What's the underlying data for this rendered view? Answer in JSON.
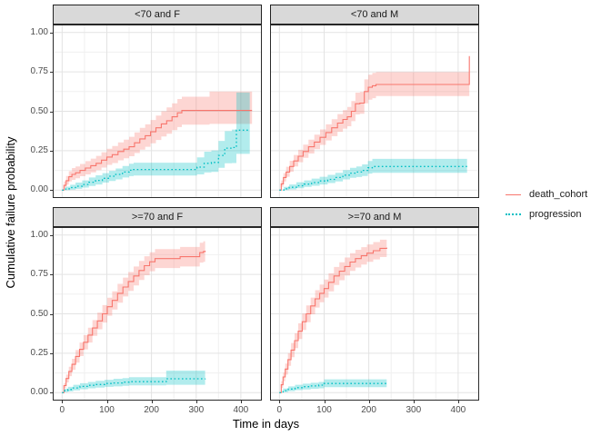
{
  "figure": {
    "background": "#ffffff",
    "panel_background": "#ffffff",
    "panel_border": "#2b2b2b",
    "strip_background": "#d9d9d9",
    "grid_major_color": "#e3e3e3",
    "grid_minor_color": "#f0f0f0",
    "tick_color": "#333333",
    "tick_text_color": "#4d4d4d"
  },
  "chart_data": {
    "type": "line",
    "title": "",
    "xlabel": "Time in days",
    "ylabel": "Cumulative failure probability",
    "legend_position": "right",
    "grid": true,
    "xlim": [
      -21,
      447
    ],
    "ylim": [
      -0.05,
      1.05
    ],
    "x_ticks": [
      0,
      100,
      200,
      300,
      400
    ],
    "x_tick_labels": [
      "0",
      "100",
      "200",
      "300",
      "400"
    ],
    "x_minor_ticks": [
      50,
      150,
      250,
      350
    ],
    "y_ticks": [
      0,
      0.25,
      0.5,
      0.75,
      1.0
    ],
    "y_tick_labels": [
      "0.00",
      "0.25",
      "0.50",
      "0.75",
      "1.00"
    ],
    "y_minor_ticks": [
      0.125,
      0.375,
      0.625,
      0.875
    ],
    "legend": [
      {
        "name": "death_cohort",
        "color": "#F8766D",
        "linestyle": "solid"
      },
      {
        "name": "progression",
        "color": "#00BFC4",
        "linestyle": "dotted"
      }
    ],
    "ribbon_opacity": 0.3,
    "panels": [
      {
        "label": "<70 and F",
        "series": [
          {
            "name": "death_cohort",
            "x": [
              0,
              4,
              9,
              15,
              22,
              30,
              40,
              52,
              64,
              76,
              88,
              100,
              112,
              125,
              138,
              150,
              162,
              174,
              186,
              198,
              210,
              222,
              234,
              246,
              258,
              268,
              330,
              425
            ],
            "y": [
              0,
              0.03,
              0.06,
              0.085,
              0.1,
              0.11,
              0.125,
              0.14,
              0.155,
              0.17,
              0.19,
              0.21,
              0.225,
              0.245,
              0.26,
              0.275,
              0.3,
              0.325,
              0.345,
              0.37,
              0.395,
              0.42,
              0.44,
              0.465,
              0.49,
              0.505,
              0.505,
              0.505
            ],
            "lower": [
              0,
              0.012,
              0.035,
              0.055,
              0.065,
              0.075,
              0.088,
              0.1,
              0.113,
              0.127,
              0.143,
              0.16,
              0.172,
              0.189,
              0.202,
              0.215,
              0.235,
              0.257,
              0.275,
              0.297,
              0.318,
              0.34,
              0.357,
              0.38,
              0.4,
              0.415,
              0.42,
              0.42
            ],
            "upper": [
              0,
              0.055,
              0.09,
              0.12,
              0.14,
              0.15,
              0.166,
              0.184,
              0.2,
              0.217,
              0.24,
              0.263,
              0.28,
              0.303,
              0.32,
              0.338,
              0.366,
              0.395,
              0.417,
              0.445,
              0.473,
              0.5,
              0.524,
              0.55,
              0.578,
              0.592,
              0.625,
              0.625
            ]
          },
          {
            "name": "progression",
            "x": [
              0,
              8,
              18,
              30,
              45,
              60,
              75,
              90,
              105,
              120,
              135,
              150,
              160,
              290,
              302,
              318,
              334,
              350,
              364,
              380,
              390,
              420
            ],
            "y": [
              0,
              0.008,
              0.016,
              0.025,
              0.036,
              0.05,
              0.062,
              0.075,
              0.088,
              0.1,
              0.115,
              0.126,
              0.131,
              0.131,
              0.146,
              0.17,
              0.176,
              0.22,
              0.266,
              0.27,
              0.38,
              0.38
            ],
            "lower": [
              0,
              0,
              0.003,
              0.008,
              0.016,
              0.026,
              0.036,
              0.048,
              0.058,
              0.068,
              0.08,
              0.089,
              0.092,
              0.092,
              0.1,
              0.112,
              0.116,
              0.142,
              0.17,
              0.172,
              0.23,
              0.23
            ],
            "upper": [
              0,
              0.022,
              0.034,
              0.048,
              0.062,
              0.08,
              0.094,
              0.108,
              0.122,
              0.137,
              0.153,
              0.167,
              0.174,
              0.174,
              0.208,
              0.244,
              0.252,
              0.312,
              0.374,
              0.384,
              0.62,
              0.625
            ]
          }
        ]
      },
      {
        "label": "<70 and M",
        "series": [
          {
            "name": "death_cohort",
            "x": [
              0,
              4,
              9,
              15,
              23,
              32,
              42,
              53,
              65,
              78,
              91,
              104,
              117,
              130,
              142,
              152,
              161,
              170,
              180,
              190,
              199,
              208,
              216,
              420,
              425
            ],
            "y": [
              0,
              0.04,
              0.08,
              0.115,
              0.15,
              0.185,
              0.215,
              0.245,
              0.275,
              0.305,
              0.335,
              0.365,
              0.395,
              0.425,
              0.448,
              0.465,
              0.5,
              0.548,
              0.552,
              0.625,
              0.652,
              0.662,
              0.67,
              0.67,
              0.85
            ],
            "lower": [
              0,
              0.022,
              0.055,
              0.085,
              0.117,
              0.15,
              0.177,
              0.205,
              0.232,
              0.26,
              0.287,
              0.315,
              0.342,
              0.37,
              0.39,
              0.405,
              0.437,
              0.48,
              0.484,
              0.55,
              0.574,
              0.583,
              0.596,
              0.596,
              0.6
            ],
            "upper": [
              0,
              0.062,
              0.108,
              0.148,
              0.186,
              0.223,
              0.256,
              0.288,
              0.32,
              0.352,
              0.385,
              0.417,
              0.45,
              0.482,
              0.507,
              0.527,
              0.565,
              0.618,
              0.622,
              0.702,
              0.732,
              0.743,
              0.748,
              0.748,
              0.85
            ]
          },
          {
            "name": "progression",
            "x": [
              0,
              10,
              22,
              38,
              55,
              72,
              90,
              108,
              125,
              142,
              158,
              172,
              185,
              198,
              208,
              420
            ],
            "y": [
              0,
              0.008,
              0.018,
              0.028,
              0.038,
              0.048,
              0.058,
              0.068,
              0.08,
              0.095,
              0.108,
              0.115,
              0.125,
              0.142,
              0.15,
              0.15
            ],
            "lower": [
              0,
              0,
              0.005,
              0.012,
              0.02,
              0.028,
              0.036,
              0.045,
              0.055,
              0.068,
              0.078,
              0.083,
              0.09,
              0.105,
              0.11,
              0.11
            ],
            "upper": [
              0,
              0.02,
              0.036,
              0.05,
              0.062,
              0.073,
              0.085,
              0.097,
              0.11,
              0.127,
              0.142,
              0.15,
              0.163,
              0.185,
              0.198,
              0.198
            ]
          }
        ]
      },
      {
        "label": ">=70 and F",
        "series": [
          {
            "name": "death_cohort",
            "x": [
              0,
              4,
              9,
              15,
              22,
              30,
              39,
              48,
              58,
              68,
              79,
              90,
              101,
              112,
              124,
              136,
              148,
              160,
              172,
              184,
              196,
              208,
              255,
              264,
              300,
              308,
              316,
              320
            ],
            "y": [
              0,
              0.045,
              0.09,
              0.135,
              0.18,
              0.23,
              0.275,
              0.32,
              0.365,
              0.41,
              0.455,
              0.5,
              0.545,
              0.585,
              0.63,
              0.67,
              0.705,
              0.74,
              0.775,
              0.805,
              0.83,
              0.85,
              0.85,
              0.862,
              0.862,
              0.888,
              0.895,
              0.9
            ],
            "lower": [
              0,
              0.028,
              0.065,
              0.105,
              0.145,
              0.19,
              0.232,
              0.275,
              0.318,
              0.36,
              0.402,
              0.445,
              0.488,
              0.527,
              0.57,
              0.61,
              0.645,
              0.68,
              0.715,
              0.745,
              0.77,
              0.79,
              0.79,
              0.8,
              0.8,
              0.825,
              0.83,
              0.825
            ],
            "upper": [
              0,
              0.062,
              0.115,
              0.165,
              0.215,
              0.27,
              0.318,
              0.365,
              0.412,
              0.46,
              0.508,
              0.555,
              0.602,
              0.643,
              0.69,
              0.73,
              0.765,
              0.8,
              0.835,
              0.865,
              0.89,
              0.91,
              0.91,
              0.924,
              0.924,
              0.951,
              0.96,
              0.965
            ]
          },
          {
            "name": "progression",
            "x": [
              0,
              5,
              13,
              25,
              40,
              58,
              75,
              95,
              115,
              135,
              150,
              225,
              233,
              320
            ],
            "y": [
              0,
              0.012,
              0.02,
              0.03,
              0.04,
              0.047,
              0.052,
              0.058,
              0.062,
              0.067,
              0.07,
              0.07,
              0.088,
              0.09
            ],
            "lower": [
              0,
              0.004,
              0.008,
              0.015,
              0.022,
              0.028,
              0.032,
              0.037,
              0.04,
              0.044,
              0.046,
              0.046,
              0.05,
              0.05
            ],
            "upper": [
              0,
              0.025,
              0.037,
              0.05,
              0.06,
              0.068,
              0.075,
              0.082,
              0.088,
              0.093,
              0.098,
              0.098,
              0.14,
              0.14
            ]
          }
        ]
      },
      {
        "label": ">=70 and M",
        "series": [
          {
            "name": "death_cohort",
            "x": [
              0,
              4,
              8,
              13,
              19,
              26,
              34,
              42,
              51,
              60,
              70,
              80,
              90,
              100,
              110,
              122,
              134,
              146,
              158,
              170,
              183,
              196,
              210,
              225,
              240
            ],
            "y": [
              0,
              0.05,
              0.1,
              0.15,
              0.21,
              0.27,
              0.33,
              0.39,
              0.45,
              0.5,
              0.55,
              0.595,
              0.63,
              0.66,
              0.7,
              0.74,
              0.77,
              0.8,
              0.828,
              0.85,
              0.868,
              0.885,
              0.9,
              0.915,
              0.92
            ],
            "lower": [
              0,
              0.03,
              0.072,
              0.115,
              0.17,
              0.225,
              0.283,
              0.34,
              0.398,
              0.447,
              0.497,
              0.54,
              0.574,
              0.603,
              0.643,
              0.683,
              0.713,
              0.743,
              0.772,
              0.794,
              0.813,
              0.83,
              0.845,
              0.86,
              0.865
            ],
            "upper": [
              0,
              0.073,
              0.128,
              0.185,
              0.25,
              0.315,
              0.377,
              0.44,
              0.502,
              0.553,
              0.603,
              0.65,
              0.686,
              0.717,
              0.757,
              0.797,
              0.827,
              0.857,
              0.884,
              0.906,
              0.923,
              0.94,
              0.955,
              0.97,
              0.975
            ]
          },
          {
            "name": "progression",
            "x": [
              0,
              8,
              20,
              35,
              52,
              70,
              88,
              100,
              240
            ],
            "y": [
              0,
              0.013,
              0.023,
              0.032,
              0.038,
              0.043,
              0.048,
              0.058,
              0.058
            ],
            "lower": [
              0,
              0.004,
              0.01,
              0.016,
              0.021,
              0.025,
              0.028,
              0.035,
              0.035
            ],
            "upper": [
              0,
              0.026,
              0.04,
              0.05,
              0.057,
              0.063,
              0.068,
              0.085,
              0.085
            ]
          }
        ]
      }
    ]
  }
}
